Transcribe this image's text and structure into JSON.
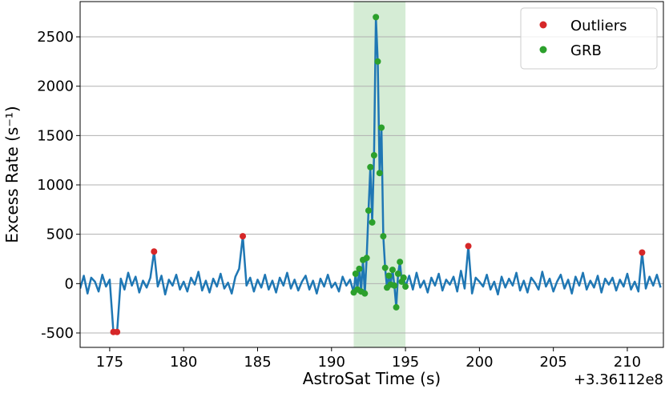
{
  "chart_data": {
    "type": "line",
    "x_label": "AstroSat Time (s)",
    "y_label": "Excess Rate (s⁻¹)",
    "x_offset_label": "+3.36112e8",
    "xlim": [
      173.0,
      212.44
    ],
    "ylim": [
      -646,
      2857
    ],
    "xticks": [
      175,
      180,
      185,
      190,
      195,
      200,
      205,
      210
    ],
    "yticks": [
      -500,
      0,
      500,
      1000,
      1500,
      2000,
      2500
    ],
    "grid": "y",
    "legend": "upper right",
    "shade_xlim": [
      191.5,
      195.0
    ],
    "shade_color": "#2ca02c",
    "series": [
      {
        "kind": "line",
        "color": "#1f77b4",
        "x": [
          173.0,
          173.25,
          173.5,
          173.75,
          174.0,
          174.25,
          174.5,
          174.75,
          175.0,
          175.25,
          175.5,
          175.75,
          176.0,
          176.25,
          176.5,
          176.75,
          177.0,
          177.25,
          177.5,
          177.75,
          178.0,
          178.25,
          178.5,
          178.75,
          179.0,
          179.25,
          179.5,
          179.75,
          180.0,
          180.25,
          180.5,
          180.75,
          181.0,
          181.25,
          181.5,
          181.75,
          182.0,
          182.25,
          182.5,
          182.75,
          183.0,
          183.25,
          183.5,
          183.75,
          184.0,
          184.25,
          184.5,
          184.75,
          185.0,
          185.25,
          185.5,
          185.75,
          186.0,
          186.25,
          186.5,
          186.75,
          187.0,
          187.25,
          187.5,
          187.75,
          188.0,
          188.25,
          188.5,
          188.75,
          189.0,
          189.25,
          189.5,
          189.75,
          190.0,
          190.25,
          190.5,
          190.75,
          191.0,
          191.25,
          191.5,
          191.625,
          191.75,
          191.875,
          192.0,
          192.125,
          192.25,
          192.375,
          192.5,
          192.625,
          192.75,
          192.875,
          193.0,
          193.125,
          193.25,
          193.375,
          193.5,
          193.625,
          193.75,
          193.875,
          194.0,
          194.125,
          194.25,
          194.375,
          194.5,
          194.625,
          194.75,
          194.875,
          195.0,
          195.25,
          195.5,
          195.75,
          196.0,
          196.25,
          196.5,
          196.75,
          197.0,
          197.25,
          197.5,
          197.75,
          198.0,
          198.25,
          198.5,
          198.75,
          199.0,
          199.25,
          199.5,
          199.75,
          200.0,
          200.25,
          200.5,
          200.75,
          201.0,
          201.25,
          201.5,
          201.75,
          202.0,
          202.25,
          202.5,
          202.75,
          203.0,
          203.25,
          203.5,
          203.75,
          204.0,
          204.25,
          204.5,
          204.75,
          205.0,
          205.25,
          205.5,
          205.75,
          206.0,
          206.25,
          206.5,
          206.75,
          207.0,
          207.25,
          207.5,
          207.75,
          208.0,
          208.25,
          208.5,
          208.75,
          209.0,
          209.25,
          209.5,
          209.75,
          210.0,
          210.25,
          210.5,
          210.75,
          211.0,
          211.25,
          211.5,
          211.75,
          212.0,
          212.25
        ],
        "values": [
          -50,
          80,
          -100,
          60,
          20,
          -80,
          90,
          -30,
          40,
          -490,
          -490,
          50,
          -60,
          110,
          -20,
          70,
          -90,
          30,
          -40,
          60,
          325,
          -30,
          80,
          -110,
          40,
          -20,
          90,
          -60,
          20,
          -80,
          60,
          -10,
          120,
          -70,
          30,
          -90,
          50,
          -30,
          100,
          -50,
          10,
          -100,
          70,
          150,
          480,
          -20,
          60,
          -80,
          40,
          -40,
          90,
          -60,
          30,
          -90,
          60,
          -20,
          110,
          -50,
          40,
          -70,
          20,
          80,
          -60,
          30,
          -100,
          50,
          -30,
          90,
          -40,
          10,
          -80,
          70,
          -20,
          40,
          -90,
          100,
          -60,
          150,
          -80,
          240,
          -100,
          260,
          740,
          1180,
          620,
          1300,
          2700,
          2250,
          1120,
          1580,
          480,
          160,
          -40,
          80,
          -10,
          140,
          -20,
          -240,
          100,
          220,
          20,
          60,
          -30,
          80,
          -60,
          110,
          -40,
          30,
          -90,
          60,
          -20,
          100,
          -70,
          40,
          -10,
          70,
          -80,
          130,
          -50,
          380,
          -100,
          60,
          20,
          -30,
          90,
          -60,
          20,
          -110,
          70,
          -40,
          50,
          -20,
          110,
          -70,
          30,
          -90,
          60,
          10,
          -60,
          120,
          -30,
          50,
          -80,
          20,
          90,
          -50,
          40,
          -100,
          70,
          -20,
          110,
          -60,
          30,
          -40,
          80,
          -90,
          50,
          -10,
          60,
          -70,
          40,
          -30,
          100,
          -60,
          20,
          -80,
          315,
          -50,
          70,
          -20,
          90,
          -40
        ]
      },
      {
        "kind": "scatter",
        "name": "Outliers",
        "color": "#d62728",
        "x": [
          175.25,
          175.5,
          178.0,
          184.0,
          199.25,
          211.0
        ],
        "values": [
          -490,
          -490,
          325,
          480,
          380,
          315
        ]
      },
      {
        "kind": "scatter",
        "name": "GRB",
        "color": "#2ca02c",
        "x": [
          191.5,
          191.625,
          191.75,
          191.875,
          192.0,
          192.125,
          192.25,
          192.375,
          192.5,
          192.625,
          192.75,
          192.875,
          193.0,
          193.125,
          193.25,
          193.375,
          193.5,
          193.625,
          193.75,
          193.875,
          194.0,
          194.125,
          194.25,
          194.375,
          194.5,
          194.625,
          194.75,
          194.875,
          195.0
        ],
        "values": [
          -90,
          100,
          -60,
          150,
          -80,
          240,
          -100,
          260,
          740,
          1180,
          620,
          1300,
          2700,
          2250,
          1120,
          1580,
          480,
          160,
          -40,
          80,
          -10,
          140,
          -20,
          -240,
          100,
          220,
          20,
          60,
          -30
        ]
      }
    ]
  }
}
